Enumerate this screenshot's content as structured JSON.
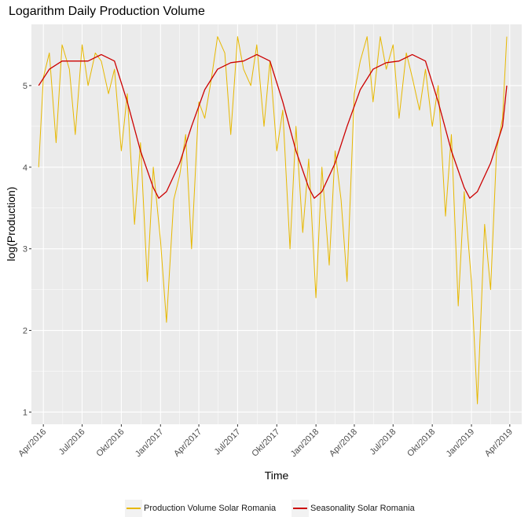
{
  "chart_data": {
    "type": "line",
    "title": "Logarithm Daily Production Volume",
    "xlabel": "Time",
    "ylabel": "log(Production)",
    "x_ticks": [
      "Apr/2016",
      "Jul/2016",
      "Okt/2016",
      "Jan/2017",
      "Apr/2017",
      "Jul/2017",
      "Okt/2017",
      "Jan/2018",
      "Apr/2018",
      "Jul/2018",
      "Okt/2018",
      "Jan/2019",
      "Apr/2019"
    ],
    "y_ticks": [
      1,
      2,
      3,
      4,
      5
    ],
    "xlim": [
      "2016-03-04",
      "2019-04-29"
    ],
    "ylim": [
      0.85,
      5.75
    ],
    "grid": true,
    "legend_position": "bottom",
    "series": [
      {
        "name": "Production Volume Solar Romania",
        "color": "#E7B800",
        "x": [
          "2016-03-21",
          "2016-04-01",
          "2016-04-15",
          "2016-05-01",
          "2016-05-15",
          "2016-06-01",
          "2016-06-15",
          "2016-07-01",
          "2016-07-15",
          "2016-08-01",
          "2016-08-15",
          "2016-09-01",
          "2016-09-15",
          "2016-10-01",
          "2016-10-15",
          "2016-11-01",
          "2016-11-15",
          "2016-12-01",
          "2016-12-15",
          "2017-01-01",
          "2017-01-15",
          "2017-02-01",
          "2017-02-15",
          "2017-03-01",
          "2017-03-15",
          "2017-04-01",
          "2017-04-15",
          "2017-05-01",
          "2017-05-15",
          "2017-06-01",
          "2017-06-15",
          "2017-07-01",
          "2017-07-15",
          "2017-08-01",
          "2017-08-15",
          "2017-09-01",
          "2017-09-15",
          "2017-10-01",
          "2017-10-15",
          "2017-11-01",
          "2017-11-15",
          "2017-12-01",
          "2017-12-15",
          "2018-01-01",
          "2018-01-15",
          "2018-02-01",
          "2018-02-15",
          "2018-03-01",
          "2018-03-15",
          "2018-04-01",
          "2018-04-15",
          "2018-05-01",
          "2018-05-15",
          "2018-06-01",
          "2018-06-15",
          "2018-07-01",
          "2018-07-15",
          "2018-08-01",
          "2018-08-15",
          "2018-09-01",
          "2018-09-15",
          "2018-10-01",
          "2018-10-15",
          "2018-11-01",
          "2018-11-15",
          "2018-12-01",
          "2018-12-15",
          "2019-01-01",
          "2019-01-15",
          "2019-02-01",
          "2019-02-15",
          "2019-03-01",
          "2019-03-15",
          "2019-03-25"
        ],
        "values": [
          4.0,
          5.1,
          5.4,
          4.3,
          5.5,
          5.2,
          4.4,
          5.5,
          5.0,
          5.4,
          5.3,
          4.9,
          5.2,
          4.2,
          4.9,
          3.3,
          4.3,
          2.6,
          4.0,
          3.1,
          2.1,
          3.6,
          3.9,
          4.4,
          3.0,
          4.8,
          4.6,
          5.1,
          5.6,
          5.4,
          4.4,
          5.6,
          5.2,
          5.0,
          5.5,
          4.5,
          5.3,
          4.2,
          4.7,
          3.0,
          4.5,
          3.2,
          4.1,
          2.4,
          4.0,
          2.8,
          4.2,
          3.6,
          2.6,
          4.9,
          5.3,
          5.6,
          4.8,
          5.6,
          5.2,
          5.5,
          4.6,
          5.4,
          5.1,
          4.7,
          5.2,
          4.5,
          5.0,
          3.4,
          4.4,
          2.3,
          3.7,
          2.6,
          1.1,
          3.3,
          2.5,
          4.2,
          4.6,
          5.6
        ]
      },
      {
        "name": "Seasonality Solar Romania",
        "color": "#CC0000",
        "x": [
          "2016-03-21",
          "2016-04-15",
          "2016-05-15",
          "2016-06-15",
          "2016-07-15",
          "2016-08-15",
          "2016-09-15",
          "2016-10-15",
          "2016-11-15",
          "2016-12-15",
          "2016-12-28",
          "2017-01-15",
          "2017-02-15",
          "2017-03-15",
          "2017-04-15",
          "2017-05-15",
          "2017-06-15",
          "2017-07-15",
          "2017-08-15",
          "2017-09-15",
          "2017-10-15",
          "2017-11-15",
          "2017-12-15",
          "2017-12-28",
          "2018-01-15",
          "2018-02-15",
          "2018-03-15",
          "2018-04-15",
          "2018-05-15",
          "2018-06-15",
          "2018-07-15",
          "2018-08-15",
          "2018-09-15",
          "2018-10-15",
          "2018-11-15",
          "2018-12-15",
          "2018-12-28",
          "2019-01-15",
          "2019-02-15",
          "2019-03-15",
          "2019-03-25"
        ],
        "values": [
          5.0,
          5.2,
          5.3,
          5.3,
          5.3,
          5.38,
          5.3,
          4.8,
          4.2,
          3.75,
          3.62,
          3.7,
          4.05,
          4.5,
          4.95,
          5.2,
          5.28,
          5.3,
          5.38,
          5.3,
          4.8,
          4.2,
          3.75,
          3.62,
          3.7,
          4.05,
          4.5,
          4.95,
          5.2,
          5.28,
          5.3,
          5.38,
          5.3,
          4.8,
          4.2,
          3.75,
          3.62,
          3.7,
          4.05,
          4.5,
          5.0
        ]
      }
    ]
  }
}
